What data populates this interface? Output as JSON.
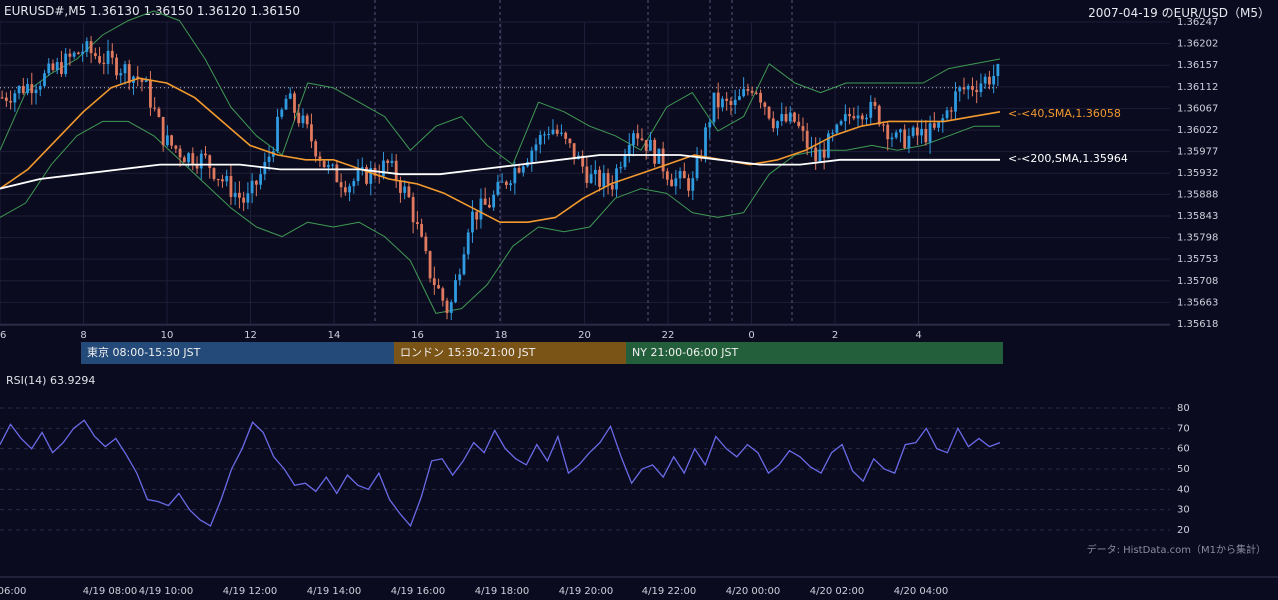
{
  "header": {
    "symbol_info": "EURUSD#,M5 1.36130 1.36150 1.36120 1.36150",
    "title": "2007-04-19 のEUR/USD（M5）"
  },
  "indicators": {
    "sma40_label": "<-<40,SMA,1.36058",
    "sma200_label": "<-<200,SMA,1.35964"
  },
  "sessions": [
    {
      "label": "東京 08:00-15:30 JST",
      "color": "#234a78"
    },
    {
      "label": "ロンドン 15:30-21:00 JST",
      "color": "#7a5317"
    },
    {
      "label": "NY 21:00-06:00 JST",
      "color": "#245f3c"
    }
  ],
  "rsi": {
    "label": "RSI(14) 63.9294"
  },
  "credit": "データ: HistData.com（M1から集計）",
  "colors": {
    "background": "#0b0b1f",
    "bull": "#2f9be0",
    "bear": "#e07a5f",
    "sma40": "#f29a2e",
    "sma200": "#ffffff",
    "bollinger": "#3f9a55",
    "rsi": "#6a6ae8"
  },
  "chart_data": [
    {
      "type": "candlestick",
      "title": "2007-04-19 のEUR/USD（M5）",
      "ylim": [
        1.35618,
        1.36247
      ],
      "yticks": [
        "1.36247",
        "1.36202",
        "1.36157",
        "1.36112",
        "1.36067",
        "1.36022",
        "1.35977",
        "1.35932",
        "1.35888",
        "1.35843",
        "1.35798",
        "1.35753",
        "1.35708",
        "1.35663",
        "1.35618"
      ],
      "xticks": [
        "6",
        "8",
        "10",
        "12",
        "14",
        "16",
        "18",
        "20",
        "22",
        "0",
        "2",
        "4"
      ],
      "current_price": 1.3611,
      "series": [
        {
          "name": "SMA 40",
          "last": 1.36058,
          "values": [
            1.359,
            1.3594,
            1.36,
            1.3606,
            1.3611,
            1.3613,
            1.3612,
            1.3609,
            1.3604,
            1.3599,
            1.3597,
            1.3596,
            1.3596,
            1.3594,
            1.3592,
            1.3591,
            1.3589,
            1.3586,
            1.3583,
            1.3583,
            1.3584,
            1.3588,
            1.3591,
            1.3593,
            1.3595,
            1.3597,
            1.3596,
            1.3595,
            1.3596,
            1.3598,
            1.3601,
            1.3603,
            1.3604,
            1.3604,
            1.3604,
            1.3605,
            1.3606
          ]
        },
        {
          "name": "SMA 200",
          "last": 1.35964,
          "values": [
            1.359,
            1.3592,
            1.3593,
            1.3594,
            1.3595,
            1.3595,
            1.3595,
            1.3594,
            1.3594,
            1.3594,
            1.3593,
            1.3593,
            1.3594,
            1.3595,
            1.3596,
            1.3597,
            1.3597,
            1.3597,
            1.3596,
            1.3595,
            1.3595,
            1.3596,
            1.3596,
            1.3596,
            1.3596,
            1.3596
          ]
        },
        {
          "name": "BB upper",
          "values": [
            1.3598,
            1.361,
            1.3614,
            1.3617,
            1.3622,
            1.3625,
            1.3627,
            1.3625,
            1.3617,
            1.3607,
            1.3601,
            1.3597,
            1.3612,
            1.3611,
            1.3608,
            1.3605,
            1.3598,
            1.3603,
            1.3605,
            1.3599,
            1.3595,
            1.3608,
            1.3606,
            1.3603,
            1.3601,
            1.3598,
            1.3607,
            1.361,
            1.3602,
            1.3605,
            1.3616,
            1.3612,
            1.361,
            1.3612,
            1.3612,
            1.3612,
            1.3612,
            1.3615,
            1.3616,
            1.3617
          ]
        },
        {
          "name": "BB lower",
          "values": [
            1.3584,
            1.3587,
            1.3595,
            1.3601,
            1.3604,
            1.3604,
            1.3601,
            1.3596,
            1.3591,
            1.3586,
            1.3582,
            1.358,
            1.3583,
            1.3582,
            1.3583,
            1.358,
            1.3575,
            1.3564,
            1.3565,
            1.357,
            1.3578,
            1.3582,
            1.3581,
            1.3582,
            1.3588,
            1.359,
            1.3589,
            1.3585,
            1.3584,
            1.3585,
            1.3593,
            1.3597,
            1.3598,
            1.3598,
            1.3599,
            1.3598,
            1.3599,
            1.3601,
            1.3603,
            1.3603
          ]
        },
        {
          "name": "Close",
          "values": [
            1.3609,
            1.3611,
            1.3613,
            1.3616,
            1.3619,
            1.3617,
            1.3615,
            1.3612,
            1.36,
            1.3597,
            1.3596,
            1.3591,
            1.3587,
            1.3595,
            1.3609,
            1.3602,
            1.3594,
            1.3591,
            1.3593,
            1.3595,
            1.3588,
            1.3573,
            1.3564,
            1.3584,
            1.3587,
            1.3593,
            1.3598,
            1.3603,
            1.3598,
            1.3592,
            1.3591,
            1.3603,
            1.3598,
            1.3592,
            1.3591,
            1.3608,
            1.3607,
            1.3612,
            1.3604,
            1.3604,
            1.3596,
            1.3601,
            1.3607,
            1.3606,
            1.36,
            1.3601,
            1.3602,
            1.361,
            1.3612,
            1.3614
          ]
        }
      ]
    },
    {
      "type": "line",
      "title": "RSI(14) 63.9294",
      "ylim": [
        20,
        80
      ],
      "yticks": [
        20,
        30,
        40,
        50,
        60,
        70,
        80
      ],
      "xticks": [
        "06:00",
        "4/19 08:00",
        "4/19 10:00",
        "4/19 12:00",
        "4/19 14:00",
        "4/19 16:00",
        "4/19 18:00",
        "4/19 20:00",
        "4/19 22:00",
        "4/20 00:00",
        "4/20 02:00",
        "4/20 04:00"
      ],
      "series": [
        {
          "name": "RSI(14)",
          "last": 63.9294,
          "values": [
            62,
            72,
            65,
            60,
            68,
            58,
            63,
            70,
            74,
            66,
            61,
            65,
            57,
            48,
            35,
            34,
            32,
            38,
            30,
            25,
            22,
            35,
            50,
            60,
            73,
            68,
            56,
            50,
            42,
            43,
            39,
            46,
            38,
            47,
            42,
            40,
            48,
            35,
            28,
            22,
            36,
            54,
            55,
            47,
            54,
            63,
            58,
            69,
            60,
            55,
            52,
            62,
            54,
            66,
            48,
            52,
            58,
            63,
            71,
            56,
            43,
            50,
            52,
            46,
            56,
            48,
            60,
            52,
            66,
            60,
            56,
            62,
            58,
            48,
            52,
            59,
            56,
            51,
            48,
            58,
            62,
            49,
            44,
            55,
            50,
            48,
            62,
            63,
            70,
            60,
            58,
            70,
            61,
            65,
            61,
            63
          ]
        }
      ]
    }
  ]
}
